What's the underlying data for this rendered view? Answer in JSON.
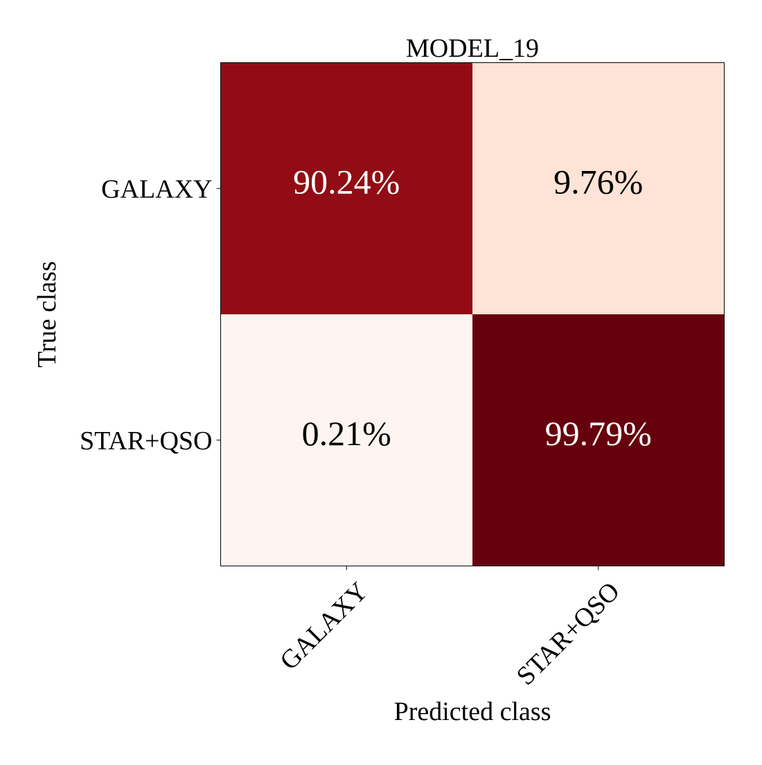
{
  "chart_data": {
    "type": "heatmap",
    "title": "MODEL_19",
    "xlabel": "Predicted class",
    "ylabel": "True class",
    "x_categories": [
      "GALAXY",
      "STAR+QSO"
    ],
    "y_categories": [
      "GALAXY",
      "STAR+QSO"
    ],
    "values": [
      [
        90.24,
        9.76
      ],
      [
        0.21,
        99.79
      ]
    ],
    "cell_labels": [
      [
        "90.24%",
        "9.76%"
      ],
      [
        "0.21%",
        "99.79%"
      ]
    ],
    "value_range": [
      0,
      100
    ],
    "colormap": "Reds",
    "cell_colors": [
      [
        "#920c15",
        "#fee3d6"
      ],
      [
        "#fff5f0",
        "#67000d"
      ]
    ],
    "text_colors": [
      [
        "#ffffff",
        "#000000"
      ],
      [
        "#000000",
        "#ffffff"
      ]
    ],
    "grid": false,
    "legend": "none"
  }
}
